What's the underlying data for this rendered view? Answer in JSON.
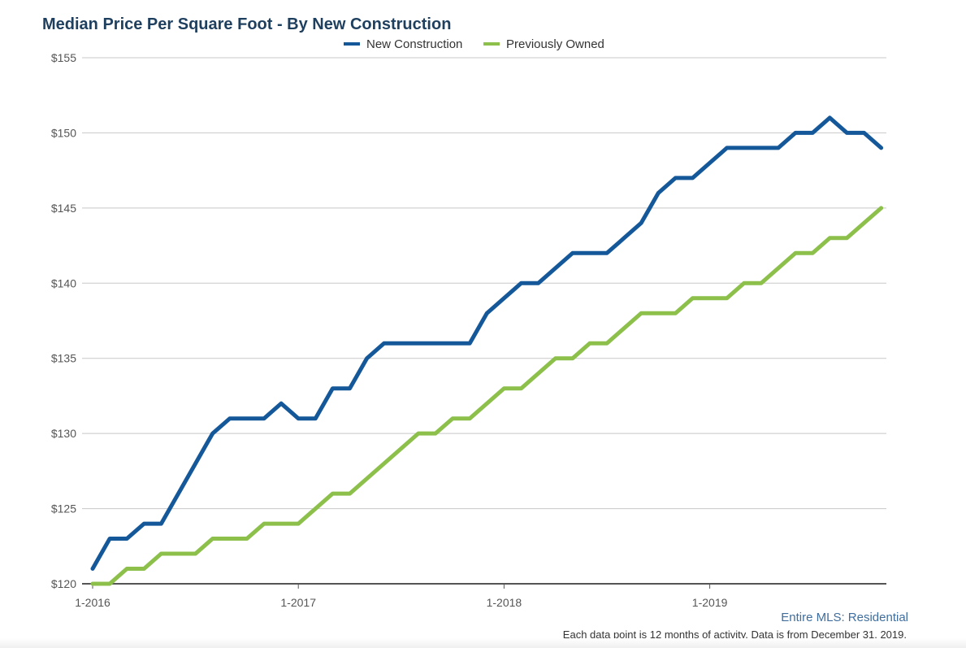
{
  "chart_data": {
    "type": "line",
    "title": "Median Price Per Square Foot - By New Construction",
    "x_tick_labels": [
      "1-2016",
      "1-2017",
      "1-2018",
      "1-2019"
    ],
    "x_start": "1-2016",
    "x_end": "11-2019",
    "y_tick_labels": [
      "$120",
      "$125",
      "$130",
      "$135",
      "$140",
      "$145",
      "$150",
      "$155"
    ],
    "ylim": [
      120,
      155
    ],
    "y_ticks": [
      120,
      125,
      130,
      135,
      140,
      145,
      150,
      155
    ],
    "grid": true,
    "legend_position": "top-center",
    "series": [
      {
        "name": "New Construction",
        "color": "#14589a",
        "values": [
          121,
          123,
          123,
          124,
          124,
          126,
          128,
          130,
          131,
          131,
          131,
          132,
          131,
          131,
          133,
          133,
          135,
          136,
          136,
          136,
          136,
          136,
          136,
          138,
          139,
          140,
          140,
          141,
          142,
          142,
          142,
          143,
          144,
          146,
          147,
          147,
          148,
          149,
          149,
          149,
          149,
          150,
          150,
          151,
          150,
          150,
          149
        ]
      },
      {
        "name": "Previously Owned",
        "color": "#8cc04b",
        "values": [
          120,
          120,
          121,
          121,
          122,
          122,
          122,
          123,
          123,
          123,
          124,
          124,
          124,
          125,
          126,
          126,
          127,
          128,
          129,
          130,
          130,
          131,
          131,
          132,
          133,
          133,
          134,
          135,
          135,
          136,
          136,
          137,
          138,
          138,
          138,
          139,
          139,
          139,
          140,
          140,
          141,
          142,
          142,
          143,
          143,
          144,
          145
        ]
      }
    ]
  },
  "footer": {
    "region": "Entire MLS: Residential",
    "note": "Each data point is 12 months of activity. Data is from December 31, 2019."
  }
}
